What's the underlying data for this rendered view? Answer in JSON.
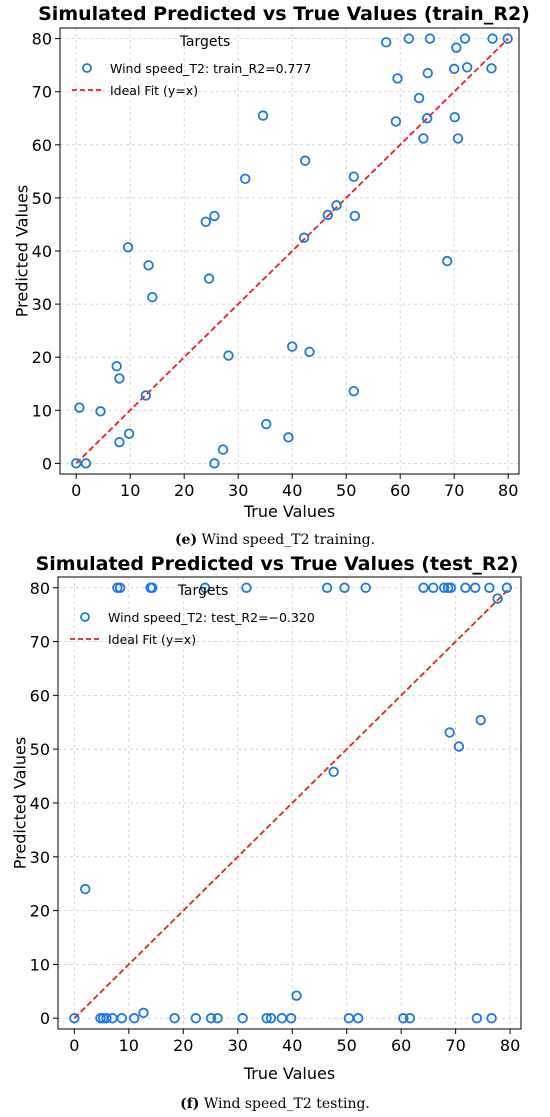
{
  "chart_data": [
    {
      "type": "scatter",
      "title": "Simulated Predicted vs True Values (train_R2)",
      "xlabel": "True Values",
      "ylabel": "Predicted Values",
      "xlim": [
        -3,
        82
      ],
      "ylim": [
        -2,
        82
      ],
      "xticks": [
        0,
        10,
        20,
        30,
        40,
        50,
        60,
        70,
        80
      ],
      "yticks": [
        0,
        10,
        20,
        30,
        40,
        50,
        60,
        70,
        80
      ],
      "grid": true,
      "legend": {
        "title": "Targets",
        "placement": "top-left",
        "entries": [
          "Wind speed_T2: train_R2=0.777",
          "Ideal Fit (y=x)"
        ]
      },
      "series": [
        {
          "name": "Wind speed_T2: train_R2=0.777",
          "marker": "open-circle",
          "color": "#1f77e4",
          "points": [
            [
              0,
              0
            ],
            [
              1.8,
              0
            ],
            [
              0.6,
              10.5
            ],
            [
              4.5,
              9.8
            ],
            [
              8,
              4
            ],
            [
              9.8,
              5.6
            ],
            [
              8,
              16
            ],
            [
              7.5,
              18.3
            ],
            [
              12.9,
              12.8
            ],
            [
              9.6,
              40.7
            ],
            [
              13.4,
              37.3
            ],
            [
              14.1,
              31.3
            ],
            [
              24.6,
              34.8
            ],
            [
              24,
              45.5
            ],
            [
              25.6,
              46.6
            ],
            [
              25.6,
              0
            ],
            [
              27.2,
              2.6
            ],
            [
              28.2,
              20.3
            ],
            [
              31.3,
              53.6
            ],
            [
              34.6,
              65.5
            ],
            [
              35.2,
              7.4
            ],
            [
              39.3,
              4.9
            ],
            [
              40,
              22
            ],
            [
              43.2,
              21
            ],
            [
              42.2,
              42.5
            ],
            [
              42.4,
              57
            ],
            [
              46.6,
              46.8
            ],
            [
              48.2,
              48.6
            ],
            [
              51.4,
              54
            ],
            [
              51.6,
              46.6
            ],
            [
              51.4,
              13.6
            ],
            [
              57.4,
              79.3
            ],
            [
              59.5,
              72.5
            ],
            [
              59.2,
              64.4
            ],
            [
              61.6,
              80
            ],
            [
              63.5,
              68.8
            ],
            [
              64.3,
              61.2
            ],
            [
              65,
              65
            ],
            [
              65.1,
              73.5
            ],
            [
              65.5,
              80
            ],
            [
              68.7,
              38.1
            ],
            [
              70,
              74.3
            ],
            [
              70.1,
              65.2
            ],
            [
              70.4,
              78.3
            ],
            [
              70.7,
              61.2
            ],
            [
              72,
              80
            ],
            [
              72.4,
              74.6
            ],
            [
              76.9,
              74.4
            ],
            [
              77.1,
              80
            ],
            [
              79.9,
              80
            ]
          ]
        },
        {
          "name": "Ideal Fit (y=x)",
          "line": "dashed",
          "color": "#e8211d",
          "points": [
            [
              0,
              0
            ],
            [
              80,
              80
            ]
          ]
        }
      ]
    },
    {
      "type": "scatter",
      "title": "Simulated Predicted vs True Values (test_R2)",
      "xlabel": "True Values",
      "ylabel": "Predicted Values",
      "xlim": [
        -3,
        82
      ],
      "ylim": [
        -2,
        82
      ],
      "xticks": [
        0,
        10,
        20,
        30,
        40,
        50,
        60,
        70,
        80
      ],
      "yticks": [
        0,
        10,
        20,
        30,
        40,
        50,
        60,
        70,
        80
      ],
      "grid": true,
      "legend": {
        "title": "Targets",
        "placement": "top-left",
        "entries": [
          "Wind speed_T2: test_R2=−0.320",
          "Ideal Fit (y=x)"
        ]
      },
      "series": [
        {
          "name": "Wind speed_T2: test_R2=−0.320",
          "marker": "open-circle",
          "color": "#1f77e4",
          "points": [
            [
              0,
              0
            ],
            [
              2,
              24
            ],
            [
              4.8,
              0
            ],
            [
              5.3,
              0
            ],
            [
              5.9,
              0
            ],
            [
              7,
              0
            ],
            [
              8.7,
              0
            ],
            [
              11,
              0
            ],
            [
              12.7,
              1
            ],
            [
              7.9,
              80
            ],
            [
              8.4,
              80
            ],
            [
              14,
              80
            ],
            [
              14.3,
              80
            ],
            [
              18.4,
              0
            ],
            [
              22.3,
              0
            ],
            [
              24,
              80
            ],
            [
              25.1,
              0
            ],
            [
              26.3,
              0
            ],
            [
              30.9,
              0
            ],
            [
              31.6,
              80
            ],
            [
              35.3,
              0
            ],
            [
              36.1,
              0
            ],
            [
              38.1,
              0
            ],
            [
              39.8,
              0
            ],
            [
              40.8,
              4.2
            ],
            [
              46.4,
              80
            ],
            [
              47.6,
              45.8
            ],
            [
              49.6,
              80
            ],
            [
              50.4,
              0
            ],
            [
              52.1,
              0
            ],
            [
              53.5,
              80
            ],
            [
              60.4,
              0
            ],
            [
              61.6,
              0
            ],
            [
              64.1,
              80
            ],
            [
              65.9,
              80
            ],
            [
              67.9,
              80
            ],
            [
              68.6,
              80
            ],
            [
              69.1,
              80
            ],
            [
              68.9,
              53.1
            ],
            [
              70.6,
              50.5
            ],
            [
              71.8,
              80
            ],
            [
              73.6,
              80
            ],
            [
              73.9,
              0
            ],
            [
              74.6,
              55.4
            ],
            [
              76.2,
              80
            ],
            [
              76.6,
              0
            ],
            [
              77.7,
              78
            ],
            [
              79.4,
              80
            ]
          ]
        },
        {
          "name": "Ideal Fit (y=x)",
          "line": "dashed",
          "color": "#e8211d",
          "points": [
            [
              0,
              0
            ],
            [
              80,
              80
            ]
          ]
        }
      ]
    }
  ],
  "captions": [
    {
      "letter": "(e)",
      "text": " Wind speed_T2 training."
    },
    {
      "letter": "(f)",
      "text": " Wind speed_T2 testing."
    }
  ],
  "colors": {
    "scatter": "#1f77e4",
    "ideal_fit": "#e8211d",
    "grid": "#cccccc"
  }
}
